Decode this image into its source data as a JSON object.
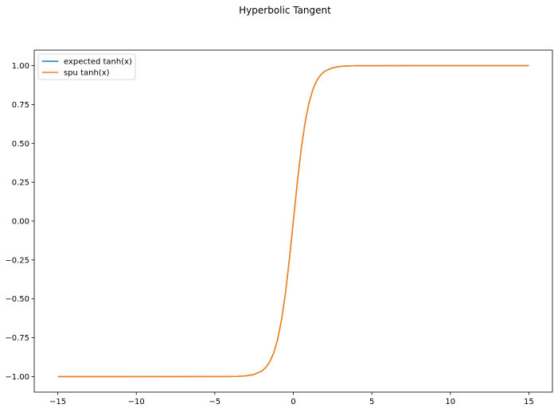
{
  "chart_data": {
    "type": "line",
    "title": "Hyperbolic Tangent",
    "xlabel": "",
    "ylabel": "",
    "xlim": [
      -16.5,
      16.5
    ],
    "ylim": [
      -1.1,
      1.1
    ],
    "xticks": [
      -15,
      -10,
      -5,
      0,
      5,
      10,
      15
    ],
    "xtick_labels": [
      "−15",
      "−10",
      "−5",
      "0",
      "5",
      "10",
      "15"
    ],
    "yticks": [
      1.0,
      0.75,
      0.5,
      0.25,
      0.0,
      -0.25,
      -0.5,
      -0.75,
      -1.0
    ],
    "ytick_labels": [
      "1.00",
      "0.75",
      "0.50",
      "0.25",
      "0.00",
      "−0.25",
      "−0.50",
      "−0.75",
      "−1.00"
    ],
    "grid": false,
    "legend_position": "top-left",
    "x": [
      -15,
      -10,
      -5,
      -4,
      -3.5,
      -3,
      -2.5,
      -2,
      -1.75,
      -1.5,
      -1.25,
      -1,
      -0.75,
      -0.5,
      -0.25,
      0,
      0.25,
      0.5,
      0.75,
      1,
      1.25,
      1.5,
      1.75,
      2,
      2.5,
      3,
      3.5,
      4,
      5,
      10,
      15
    ],
    "series": [
      {
        "name": "expected tanh(x)",
        "color": "#1f77b4",
        "values": [
          -1.0,
          -1.0,
          -0.9999,
          -0.9993,
          -0.9982,
          -0.9951,
          -0.9866,
          -0.964,
          -0.9414,
          -0.9051,
          -0.8483,
          -0.7616,
          -0.6351,
          -0.4621,
          -0.2449,
          0.0,
          0.2449,
          0.4621,
          0.6351,
          0.7616,
          0.8483,
          0.9051,
          0.9414,
          0.964,
          0.9866,
          0.9951,
          0.9982,
          0.9993,
          0.9999,
          1.0,
          1.0
        ]
      },
      {
        "name": "spu tanh(x)",
        "color": "#ff7f0e",
        "values": [
          -1.0,
          -1.0,
          -0.9999,
          -0.9993,
          -0.9982,
          -0.9951,
          -0.9866,
          -0.964,
          -0.9414,
          -0.9051,
          -0.8483,
          -0.7616,
          -0.6351,
          -0.4621,
          -0.2449,
          0.0,
          0.2449,
          0.4621,
          0.6351,
          0.7616,
          0.8483,
          0.9051,
          0.9414,
          0.964,
          0.9866,
          0.9951,
          0.9982,
          0.9993,
          0.9999,
          1.0,
          1.0
        ]
      }
    ]
  }
}
